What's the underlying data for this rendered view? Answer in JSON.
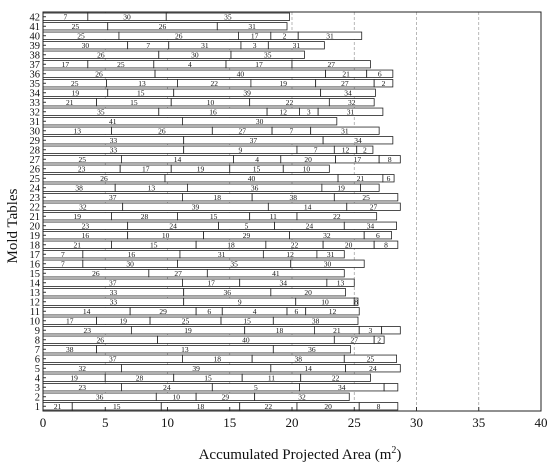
{
  "chart_data": {
    "type": "bar",
    "orientation": "horizontal",
    "stacked": true,
    "xlabel": "Accumulated Projected Area (m",
    "xlabel_sup": "2",
    "xlabel_end": ")",
    "ylabel": "Mold Tables",
    "xlim": [
      0,
      40
    ],
    "xticks": [
      0,
      5,
      10,
      15,
      20,
      25,
      30,
      35,
      40
    ],
    "grid": "vertical dashed",
    "legend": "none",
    "categories": [
      "1",
      "2",
      "3",
      "4",
      "5",
      "6",
      "7",
      "8",
      "9",
      "10",
      "11",
      "12",
      "13",
      "14",
      "15",
      "16",
      "17",
      "18",
      "19",
      "20",
      "21",
      "22",
      "23",
      "24",
      "25",
      "26",
      "27",
      "28",
      "29",
      "30",
      "31",
      "32",
      "33",
      "34",
      "35",
      "36",
      "37",
      "38",
      "39",
      "40",
      "41",
      "42"
    ],
    "bars": [
      {
        "table": "1",
        "segments": [
          {
            "label": "21",
            "value": 2.35
          },
          {
            "label": "15",
            "value": 7.15
          },
          {
            "label": "18",
            "value": 6.3
          },
          {
            "label": "22",
            "value": 4.6
          },
          {
            "label": "20",
            "value": 5.0
          },
          {
            "label": "8",
            "value": 3.1
          }
        ]
      },
      {
        "table": "2",
        "segments": [
          {
            "label": "36",
            "value": 9.1
          },
          {
            "label": "10",
            "value": 3.2
          },
          {
            "label": "29",
            "value": 4.7
          },
          {
            "label": "32",
            "value": 7.6
          }
        ]
      },
      {
        "table": "3",
        "segments": [
          {
            "label": "23",
            "value": 6.3
          },
          {
            "label": "24",
            "value": 7.3
          },
          {
            "label": "5",
            "value": 7.0
          },
          {
            "label": "34",
            "value": 6.8
          },
          {
            "label": "",
            "value": 1.1
          }
        ]
      },
      {
        "table": "4",
        "segments": [
          {
            "label": "19",
            "value": 5.0
          },
          {
            "label": "28",
            "value": 5.5
          },
          {
            "label": "15",
            "value": 5.5
          },
          {
            "label": "11",
            "value": 4.7
          },
          {
            "label": "22",
            "value": 5.6
          }
        ]
      },
      {
        "table": "5",
        "segments": [
          {
            "label": "32",
            "value": 6.3
          },
          {
            "label": "39",
            "value": 12.0
          },
          {
            "label": "14",
            "value": 6.0
          },
          {
            "label": "24",
            "value": 4.4
          }
        ]
      },
      {
        "table": "6",
        "segments": [
          {
            "label": "37",
            "value": 11.2
          },
          {
            "label": "18",
            "value": 5.6
          },
          {
            "label": "38",
            "value": 7.4
          },
          {
            "label": "25",
            "value": 4.2
          }
        ]
      },
      {
        "table": "7",
        "segments": [
          {
            "label": "38",
            "value": 4.3
          },
          {
            "label": "13",
            "value": 14.2
          },
          {
            "label": "36",
            "value": 6.2
          }
        ]
      },
      {
        "table": "8",
        "segments": [
          {
            "label": "26",
            "value": 9.2
          },
          {
            "label": "40",
            "value": 14.2
          },
          {
            "label": "27",
            "value": 3.2
          },
          {
            "label": "2",
            "value": 0.8
          }
        ]
      },
      {
        "table": "9",
        "segments": [
          {
            "label": "23",
            "value": 7.1
          },
          {
            "label": "19",
            "value": 9.1
          },
          {
            "label": "18",
            "value": 5.6
          },
          {
            "label": "21",
            "value": 3.6
          },
          {
            "label": "3",
            "value": 1.8
          },
          {
            "label": "",
            "value": 1.5
          }
        ]
      },
      {
        "table": "10",
        "segments": [
          {
            "label": "17",
            "value": 4.3
          },
          {
            "label": "19",
            "value": 4.3
          },
          {
            "label": "25",
            "value": 5.7
          },
          {
            "label": "15",
            "value": 4.2
          },
          {
            "label": "38",
            "value": 6.8
          }
        ]
      },
      {
        "table": "11",
        "segments": [
          {
            "label": "14",
            "value": 7.0
          },
          {
            "label": "29",
            "value": 5.3
          },
          {
            "label": "6",
            "value": 2.1
          },
          {
            "label": "4",
            "value": 5.2
          },
          {
            "label": "6",
            "value": 1.5
          },
          {
            "label": "12",
            "value": 4.3
          }
        ]
      },
      {
        "table": "12",
        "segments": [
          {
            "label": "33",
            "value": 11.3
          },
          {
            "label": "9",
            "value": 9.0
          },
          {
            "label": "10",
            "value": 4.7
          },
          {
            "label": "8",
            "value": 0.3
          }
        ]
      },
      {
        "table": "13",
        "segments": [
          {
            "label": "33",
            "value": 11.3
          },
          {
            "label": "36",
            "value": 7.0
          },
          {
            "label": "20",
            "value": 6.0
          }
        ]
      },
      {
        "table": "14",
        "segments": [
          {
            "label": "37",
            "value": 11.2
          },
          {
            "label": "17",
            "value": 4.6
          },
          {
            "label": "34",
            "value": 7.0
          },
          {
            "label": "13",
            "value": 2.2
          }
        ]
      },
      {
        "table": "15",
        "segments": [
          {
            "label": "26",
            "value": 8.5
          },
          {
            "label": "27",
            "value": 4.7
          },
          {
            "label": "41",
            "value": 11.0
          }
        ]
      },
      {
        "table": "16",
        "segments": [
          {
            "label": "7",
            "value": 3.2
          },
          {
            "label": "30",
            "value": 7.6
          },
          {
            "label": "35",
            "value": 9.1
          },
          {
            "label": "30",
            "value": 5.9
          }
        ]
      },
      {
        "table": "17",
        "segments": [
          {
            "label": "7",
            "value": 3.2
          },
          {
            "label": "16",
            "value": 7.8
          },
          {
            "label": "31",
            "value": 6.7
          },
          {
            "label": "12",
            "value": 4.3
          },
          {
            "label": "31",
            "value": 2.2
          }
        ]
      },
      {
        "table": "18",
        "segments": [
          {
            "label": "21",
            "value": 5.5
          },
          {
            "label": "15",
            "value": 6.8
          },
          {
            "label": "18",
            "value": 5.6
          },
          {
            "label": "22",
            "value": 4.6
          },
          {
            "label": "20",
            "value": 4.1
          },
          {
            "label": "8",
            "value": 1.9
          }
        ]
      },
      {
        "table": "19",
        "segments": [
          {
            "label": "16",
            "value": 6.8
          },
          {
            "label": "10",
            "value": 6.1
          },
          {
            "label": "29",
            "value": 6.9
          },
          {
            "label": "32",
            "value": 6.0
          },
          {
            "label": "6",
            "value": 2.2
          }
        ]
      },
      {
        "table": "20",
        "segments": [
          {
            "label": "23",
            "value": 6.8
          },
          {
            "label": "24",
            "value": 7.3
          },
          {
            "label": "5",
            "value": 4.5
          },
          {
            "label": "24",
            "value": 5.6
          },
          {
            "label": "34",
            "value": 4.2
          }
        ]
      },
      {
        "table": "21",
        "segments": [
          {
            "label": "19",
            "value": 5.5
          },
          {
            "label": "28",
            "value": 5.3
          },
          {
            "label": "15",
            "value": 5.8
          },
          {
            "label": "11",
            "value": 3.8
          },
          {
            "label": "22",
            "value": 6.4
          }
        ]
      },
      {
        "table": "22",
        "segments": [
          {
            "label": "32",
            "value": 6.4
          },
          {
            "label": "39",
            "value": 11.7
          },
          {
            "label": "14",
            "value": 6.3
          },
          {
            "label": "27",
            "value": 4.3
          }
        ]
      },
      {
        "table": "23",
        "segments": [
          {
            "label": "37",
            "value": 11.2
          },
          {
            "label": "18",
            "value": 5.6
          },
          {
            "label": "38",
            "value": 6.6
          },
          {
            "label": "25",
            "value": 5.1
          }
        ]
      },
      {
        "table": "24",
        "segments": [
          {
            "label": "38",
            "value": 5.8
          },
          {
            "label": "13",
            "value": 5.8
          },
          {
            "label": "36",
            "value": 10.8
          },
          {
            "label": "19",
            "value": 3.1
          },
          {
            "label": "",
            "value": 1.5
          }
        ]
      },
      {
        "table": "25",
        "segments": [
          {
            "label": "26",
            "value": 9.8
          },
          {
            "label": "40",
            "value": 13.9
          },
          {
            "label": "21",
            "value": 3.6
          },
          {
            "label": "6",
            "value": 0.9
          }
        ]
      },
      {
        "table": "26",
        "segments": [
          {
            "label": "23",
            "value": 6.2
          },
          {
            "label": "17",
            "value": 4.1
          },
          {
            "label": "19",
            "value": 4.7
          },
          {
            "label": "15",
            "value": 4.3
          },
          {
            "label": "10",
            "value": 3.7
          }
        ]
      },
      {
        "table": "27",
        "segments": [
          {
            "label": "25",
            "value": 6.3
          },
          {
            "label": "14",
            "value": 9.0
          },
          {
            "label": "4",
            "value": 3.8
          },
          {
            "label": "20",
            "value": 4.4
          },
          {
            "label": "17",
            "value": 3.5
          },
          {
            "label": "8",
            "value": 1.7
          }
        ]
      },
      {
        "table": "28",
        "segments": [
          {
            "label": "33",
            "value": 11.3
          },
          {
            "label": "9",
            "value": 9.1
          },
          {
            "label": "7",
            "value": 3.0
          },
          {
            "label": "12",
            "value": 1.8
          },
          {
            "label": "2",
            "value": 1.3
          }
        ]
      },
      {
        "table": "29",
        "segments": [
          {
            "label": "33",
            "value": 11.3
          },
          {
            "label": "37",
            "value": 11.2
          },
          {
            "label": "34",
            "value": 5.6
          }
        ]
      },
      {
        "table": "30",
        "segments": [
          {
            "label": "13",
            "value": 5.5
          },
          {
            "label": "26",
            "value": 8.1
          },
          {
            "label": "27",
            "value": 4.8
          },
          {
            "label": "7",
            "value": 3.1
          },
          {
            "label": "31",
            "value": 5.5
          }
        ]
      },
      {
        "table": "31",
        "segments": [
          {
            "label": "41",
            "value": 11.2
          },
          {
            "label": "30",
            "value": 12.4
          }
        ]
      },
      {
        "table": "32",
        "segments": [
          {
            "label": "35",
            "value": 9.3
          },
          {
            "label": "16",
            "value": 8.7
          },
          {
            "label": "12",
            "value": 2.6
          },
          {
            "label": "3",
            "value": 1.5
          },
          {
            "label": "31",
            "value": 5.2
          }
        ]
      },
      {
        "table": "33",
        "segments": [
          {
            "label": "21",
            "value": 4.3
          },
          {
            "label": "15",
            "value": 6.0
          },
          {
            "label": "10",
            "value": 6.3
          },
          {
            "label": "22",
            "value": 6.4
          },
          {
            "label": "32",
            "value": 3.6
          }
        ]
      },
      {
        "table": "34",
        "segments": [
          {
            "label": "19",
            "value": 5.2
          },
          {
            "label": "15",
            "value": 5.3
          },
          {
            "label": "39",
            "value": 11.8
          },
          {
            "label": "34",
            "value": 4.4
          }
        ]
      },
      {
        "table": "35",
        "segments": [
          {
            "label": "25",
            "value": 5.1
          },
          {
            "label": "13",
            "value": 5.7
          },
          {
            "label": "22",
            "value": 5.9
          },
          {
            "label": "19",
            "value": 5.2
          },
          {
            "label": "27",
            "value": 4.7
          },
          {
            "label": "2",
            "value": 1.5
          }
        ]
      },
      {
        "table": "36",
        "segments": [
          {
            "label": "26",
            "value": 9.0
          },
          {
            "label": "40",
            "value": 13.7
          },
          {
            "label": "21",
            "value": 3.3
          },
          {
            "label": "6",
            "value": 2.1
          }
        ]
      },
      {
        "table": "37",
        "segments": [
          {
            "label": "17",
            "value": 3.6
          },
          {
            "label": "25",
            "value": 5.3
          },
          {
            "label": "4",
            "value": 5.8
          },
          {
            "label": "17",
            "value": 5.3
          },
          {
            "label": "27",
            "value": 6.3
          }
        ]
      },
      {
        "table": "38",
        "segments": [
          {
            "label": "26",
            "value": 9.3
          },
          {
            "label": "30",
            "value": 5.8
          },
          {
            "label": "35",
            "value": 5.9
          }
        ]
      },
      {
        "table": "39",
        "segments": [
          {
            "label": "30",
            "value": 6.8
          },
          {
            "label": "7",
            "value": 3.3
          },
          {
            "label": "31",
            "value": 5.8
          },
          {
            "label": "3",
            "value": 2.2
          },
          {
            "label": "31",
            "value": 4.5
          }
        ]
      },
      {
        "table": "40",
        "segments": [
          {
            "label": "25",
            "value": 6.1
          },
          {
            "label": "26",
            "value": 9.6
          },
          {
            "label": "17",
            "value": 2.6
          },
          {
            "label": "2",
            "value": 2.2
          },
          {
            "label": "31",
            "value": 5.1
          }
        ]
      },
      {
        "table": "41",
        "segments": [
          {
            "label": "25",
            "value": 5.2
          },
          {
            "label": "26",
            "value": 8.8
          },
          {
            "label": "31",
            "value": 5.6
          }
        ]
      },
      {
        "table": "42",
        "segments": [
          {
            "label": "7",
            "value": 3.6
          },
          {
            "label": "30",
            "value": 6.3
          },
          {
            "label": "35",
            "value": 9.9
          }
        ]
      }
    ]
  }
}
